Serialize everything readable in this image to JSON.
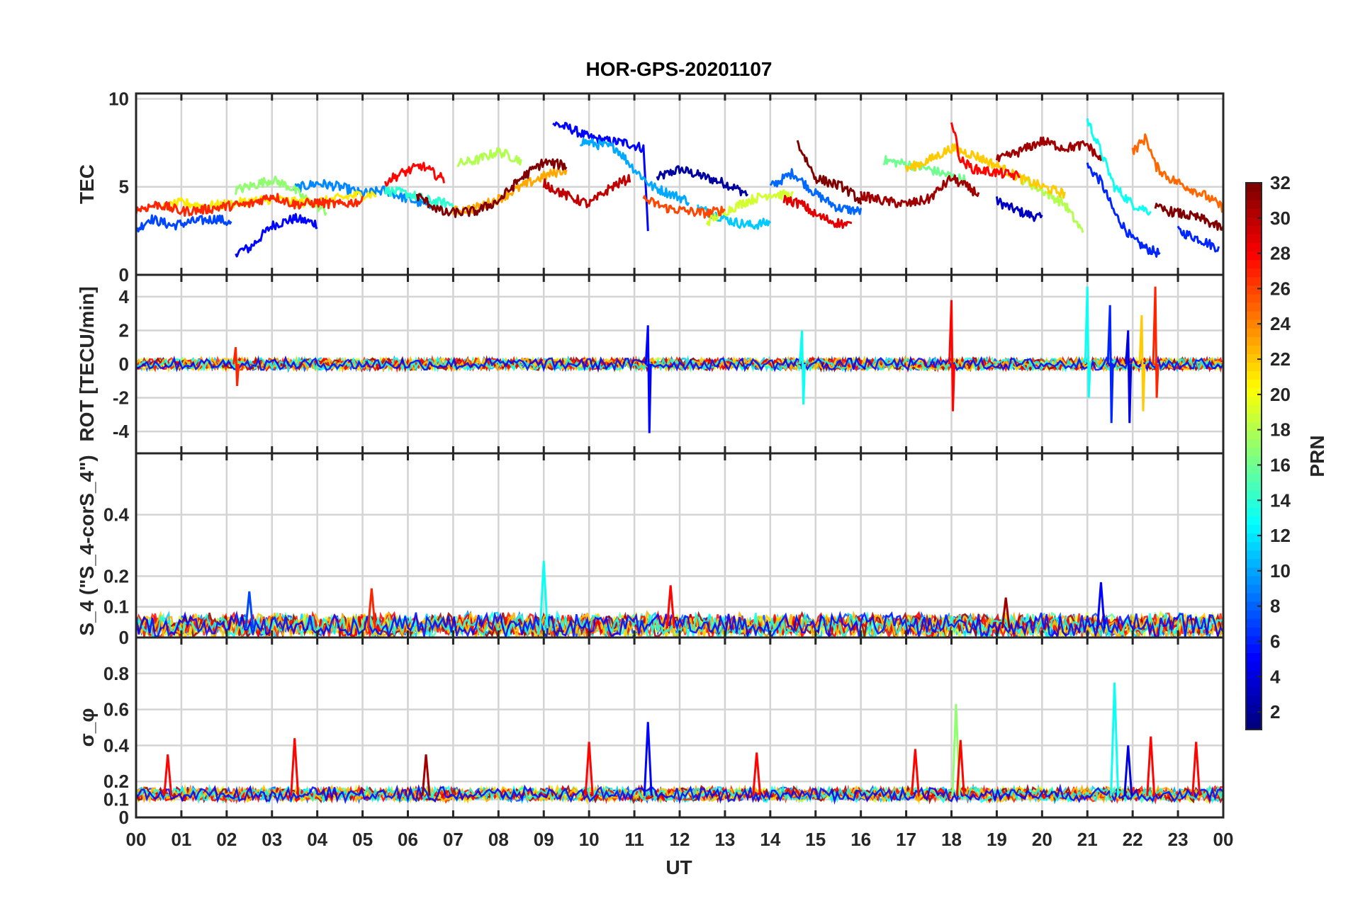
{
  "title": "HOR-GPS-20201107",
  "xlabel": "UT",
  "x_ticks": [
    "00",
    "01",
    "02",
    "03",
    "04",
    "05",
    "06",
    "07",
    "08",
    "09",
    "10",
    "11",
    "12",
    "13",
    "14",
    "15",
    "16",
    "17",
    "18",
    "19",
    "20",
    "21",
    "22",
    "23",
    "00"
  ],
  "colorbar": {
    "label": "PRN",
    "range": [
      1,
      32
    ],
    "ticks": [
      "2",
      "4",
      "6",
      "8",
      "10",
      "12",
      "14",
      "16",
      "18",
      "20",
      "22",
      "24",
      "26",
      "28",
      "30",
      "32"
    ],
    "colormap": "jet"
  },
  "chart_data": [
    {
      "type": "line",
      "panel": "TEC",
      "ylabel": "TEC",
      "ylim": [
        0,
        10.3
      ],
      "y_ticks": [
        "0",
        "5",
        "10"
      ],
      "grid": true,
      "x_unit": "hours UT",
      "series": [
        {
          "prn": 2,
          "x": [
            11.5,
            12.0,
            12.5,
            13.0,
            13.5
          ],
          "y": [
            5.5,
            6.0,
            5.6,
            5.2,
            4.6
          ]
        },
        {
          "prn": 3,
          "x": [
            19.0,
            19.3,
            19.6,
            20.0
          ],
          "y": [
            4.2,
            3.8,
            3.5,
            3.2
          ]
        },
        {
          "prn": 5,
          "x": [
            2.2,
            2.5,
            3.0,
            3.5,
            4.0
          ],
          "y": [
            1.3,
            1.5,
            2.8,
            3.2,
            2.9
          ]
        },
        {
          "prn": 5,
          "x": [
            9.2,
            9.6,
            10.0,
            10.4,
            10.8,
            11.2,
            11.3
          ],
          "y": [
            8.6,
            8.3,
            7.8,
            7.6,
            7.5,
            7.2,
            2.7
          ]
        },
        {
          "prn": 6,
          "x": [
            21.0,
            21.3,
            21.6,
            22.0,
            22.3,
            22.6
          ],
          "y": [
            6.2,
            5.3,
            3.5,
            2.0,
            1.5,
            1.2
          ]
        },
        {
          "prn": 6,
          "x": [
            23.0,
            23.5,
            23.9
          ],
          "y": [
            2.5,
            2.0,
            1.5
          ]
        },
        {
          "prn": 7,
          "x": [
            0.0,
            0.3,
            0.8,
            1.2,
            1.8,
            2.1
          ],
          "y": [
            2.5,
            3.2,
            2.8,
            3.0,
            3.2,
            2.9
          ]
        },
        {
          "prn": 8,
          "x": [
            14.0,
            14.5,
            15.0,
            15.5,
            16.0
          ],
          "y": [
            5.0,
            5.8,
            4.6,
            3.8,
            3.6
          ]
        },
        {
          "prn": 9,
          "x": [
            3.5,
            4.0,
            4.5,
            5.0,
            5.5,
            6.0,
            6.5
          ],
          "y": [
            4.9,
            5.2,
            5.0,
            4.6,
            4.8,
            4.3,
            3.9
          ]
        },
        {
          "prn": 10,
          "x": [
            9.8,
            10.2,
            10.6,
            11.0,
            11.4,
            11.8,
            12.2
          ],
          "y": [
            7.6,
            7.4,
            7.2,
            6.0,
            5.0,
            4.6,
            4.2
          ]
        },
        {
          "prn": 11,
          "x": [
            12.4,
            12.8,
            13.2,
            13.6,
            14.0
          ],
          "y": [
            3.8,
            3.4,
            3.0,
            2.8,
            3.0
          ]
        },
        {
          "prn": 13,
          "x": [
            21.0,
            21.3,
            21.6,
            22.0,
            22.4
          ],
          "y": [
            8.8,
            7.0,
            5.0,
            4.0,
            3.6
          ]
        },
        {
          "prn": 14,
          "x": [
            5.5,
            6.0,
            6.5,
            7.0
          ],
          "y": [
            4.8,
            4.6,
            4.2,
            4.0
          ]
        },
        {
          "prn": 16,
          "x": [
            16.5,
            17.0,
            17.5,
            18.0,
            18.3
          ],
          "y": [
            6.5,
            6.3,
            6.0,
            5.6,
            5.4
          ]
        },
        {
          "prn": 17,
          "x": [
            2.2,
            2.6,
            3.0,
            3.4,
            3.8,
            4.2
          ],
          "y": [
            4.8,
            5.1,
            5.4,
            5.0,
            4.2,
            3.6
          ]
        },
        {
          "prn": 18,
          "x": [
            7.1,
            7.5,
            8.0,
            8.5
          ],
          "y": [
            6.3,
            6.5,
            7.0,
            6.5
          ]
        },
        {
          "prn": 18,
          "x": [
            19.5,
            20.0,
            20.5,
            20.9
          ],
          "y": [
            5.5,
            4.8,
            4.0,
            2.4
          ]
        },
        {
          "prn": 19,
          "x": [
            12.6,
            13.0,
            13.5,
            14.0,
            14.5
          ],
          "y": [
            3.0,
            3.6,
            4.2,
            4.6,
            4.5
          ]
        },
        {
          "prn": 21,
          "x": [
            0.6,
            1.0,
            1.5,
            2.0,
            2.6,
            3.0,
            3.6,
            4.2,
            4.8,
            5.3
          ],
          "y": [
            3.8,
            4.1,
            3.9,
            4.0,
            4.2,
            4.3,
            4.1,
            4.2,
            4.5,
            4.6
          ]
        },
        {
          "prn": 22,
          "x": [
            17.0,
            17.5,
            18.0,
            18.5,
            19.0,
            19.5,
            20.0,
            20.5
          ],
          "y": [
            6.0,
            6.5,
            7.2,
            6.8,
            6.2,
            5.5,
            5.0,
            4.6
          ]
        },
        {
          "prn": 23,
          "x": [
            7.0,
            7.5,
            8.0,
            8.5,
            9.0,
            9.5
          ],
          "y": [
            3.6,
            3.8,
            4.3,
            5.0,
            5.6,
            6.0
          ]
        },
        {
          "prn": 25,
          "x": [
            22.0,
            22.3,
            22.5,
            22.8,
            23.2,
            23.6,
            24.0
          ],
          "y": [
            7.0,
            7.8,
            6.2,
            5.5,
            5.0,
            4.5,
            3.8
          ]
        },
        {
          "prn": 26,
          "x": [
            11.2,
            11.7,
            12.2,
            12.6,
            13.0
          ],
          "y": [
            4.3,
            3.8,
            3.6,
            3.5,
            3.7
          ]
        },
        {
          "prn": 27,
          "x": [
            0.0,
            0.5,
            1.0,
            1.5,
            2.0,
            2.5,
            3.0,
            3.5,
            4.0,
            4.5,
            5.0
          ],
          "y": [
            3.7,
            4.0,
            3.6,
            3.7,
            3.9,
            4.0,
            4.5,
            4.0,
            4.1,
            4.0,
            4.2
          ]
        },
        {
          "prn": 28,
          "x": [
            5.5,
            5.9,
            6.3,
            6.8
          ],
          "y": [
            5.3,
            5.8,
            6.2,
            5.4
          ]
        },
        {
          "prn": 28,
          "x": [
            18.0,
            18.2,
            18.5,
            19.0,
            19.5
          ],
          "y": [
            8.8,
            6.5,
            6.0,
            5.8,
            5.6
          ]
        },
        {
          "prn": 29,
          "x": [
            14.3,
            14.7,
            15.0,
            15.4,
            15.8
          ],
          "y": [
            4.3,
            4.0,
            3.4,
            3.0,
            2.8
          ]
        },
        {
          "prn": 30,
          "x": [
            9.0,
            9.5,
            10.0,
            10.5,
            10.9
          ],
          "y": [
            5.2,
            4.5,
            4.0,
            5.0,
            5.5
          ]
        },
        {
          "prn": 31,
          "x": [
            16.0,
            16.5,
            17.0,
            17.5,
            18.0,
            18.6
          ],
          "y": [
            4.5,
            4.2,
            4.0,
            4.3,
            5.5,
            4.6
          ]
        },
        {
          "prn": 31,
          "x": [
            19.0,
            19.5,
            20.0,
            20.5,
            21.0,
            21.3
          ],
          "y": [
            6.5,
            7.0,
            7.6,
            7.2,
            7.4,
            6.5
          ]
        },
        {
          "prn": 32,
          "x": [
            6.2,
            6.8,
            7.5,
            8.0,
            8.5,
            9.0,
            9.5
          ],
          "y": [
            4.5,
            3.5,
            3.6,
            4.2,
            5.5,
            6.4,
            6.2
          ]
        },
        {
          "prn": 32,
          "x": [
            14.6,
            15.0,
            15.6,
            16.0
          ],
          "y": [
            7.5,
            5.5,
            5.0,
            4.2
          ]
        },
        {
          "prn": 32,
          "x": [
            22.5,
            23.0,
            23.5,
            24.0
          ],
          "y": [
            3.8,
            3.5,
            3.2,
            2.6
          ]
        }
      ]
    },
    {
      "type": "line",
      "panel": "ROT",
      "ylabel": "ROT [TECU/min]",
      "ylim": [
        -5.3,
        5.3
      ],
      "y_ticks": [
        "-4",
        "-2",
        "0",
        "2",
        "4"
      ],
      "grid": true,
      "x_unit": "hours UT",
      "spikes": [
        {
          "x": 2.2,
          "ymin": -1.3,
          "ymax": 1.0,
          "prn": 27
        },
        {
          "x": 11.3,
          "ymin": -4.1,
          "ymax": 2.3,
          "prn": 5
        },
        {
          "x": 14.7,
          "ymin": -2.4,
          "ymax": 2.0,
          "prn": 13
        },
        {
          "x": 18.0,
          "ymin": -2.8,
          "ymax": 3.8,
          "prn": 28
        },
        {
          "x": 21.0,
          "ymin": -2.0,
          "ymax": 4.6,
          "prn": 13
        },
        {
          "x": 21.5,
          "ymin": -3.5,
          "ymax": 3.5,
          "prn": 6
        },
        {
          "x": 21.9,
          "ymin": -3.5,
          "ymax": 2.0,
          "prn": 4
        },
        {
          "x": 22.2,
          "ymin": -2.8,
          "ymax": 2.9,
          "prn": 22
        },
        {
          "x": 22.5,
          "ymin": -2.0,
          "ymax": 4.6,
          "prn": 27
        }
      ]
    },
    {
      "type": "line",
      "panel": "S4",
      "ylabel": "S_4 (\"S_4-corS_4\")",
      "ylim": [
        0,
        0.6
      ],
      "y_ticks": [
        "0",
        "0.1",
        "0.2",
        "0.4"
      ],
      "grid": true,
      "x_unit": "hours UT",
      "peaks": [
        {
          "x": 2.5,
          "y": 0.15,
          "prn": 7
        },
        {
          "x": 5.2,
          "y": 0.16,
          "prn": 27
        },
        {
          "x": 9.0,
          "y": 0.25,
          "prn": 13
        },
        {
          "x": 11.8,
          "y": 0.17,
          "prn": 28
        },
        {
          "x": 21.3,
          "y": 0.18,
          "prn": 5
        },
        {
          "x": 19.2,
          "y": 0.13,
          "prn": 31
        }
      ]
    },
    {
      "type": "line",
      "panel": "sigma_phi",
      "ylabel": "σ_φ",
      "ylim": [
        0,
        1.0
      ],
      "y_ticks": [
        "0",
        "0.1",
        "0.2",
        "0.4",
        "0.6",
        "0.8"
      ],
      "grid": true,
      "x_unit": "hours UT",
      "peaks": [
        {
          "x": 0.7,
          "y": 0.35,
          "prn": 28
        },
        {
          "x": 3.5,
          "y": 0.44,
          "prn": 28
        },
        {
          "x": 6.4,
          "y": 0.35,
          "prn": 31
        },
        {
          "x": 10.0,
          "y": 0.42,
          "prn": 28
        },
        {
          "x": 11.3,
          "y": 0.53,
          "prn": 5
        },
        {
          "x": 13.7,
          "y": 0.36,
          "prn": 28
        },
        {
          "x": 17.2,
          "y": 0.38,
          "prn": 28
        },
        {
          "x": 18.1,
          "y": 0.63,
          "prn": 17
        },
        {
          "x": 18.2,
          "y": 0.43,
          "prn": 28
        },
        {
          "x": 21.6,
          "y": 0.75,
          "prn": 13
        },
        {
          "x": 21.9,
          "y": 0.4,
          "prn": 4
        },
        {
          "x": 22.4,
          "y": 0.45,
          "prn": 28
        },
        {
          "x": 23.4,
          "y": 0.42,
          "prn": 28
        }
      ]
    }
  ]
}
